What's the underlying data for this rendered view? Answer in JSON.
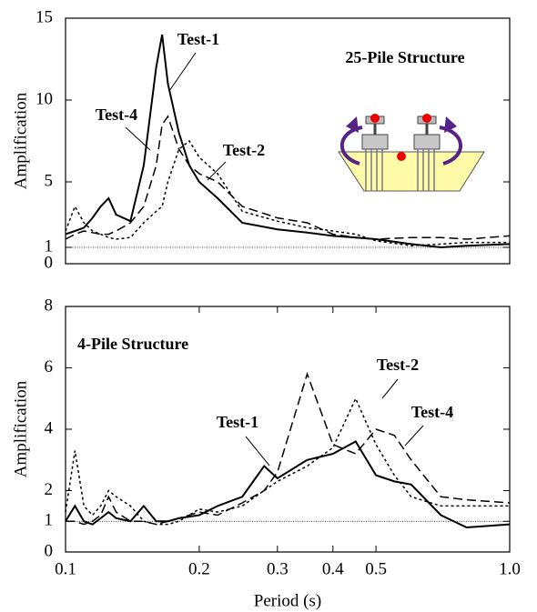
{
  "chart_data": [
    {
      "type": "line",
      "title": "25-Pile Structure",
      "ylabel": "Amplification",
      "log_x": true,
      "xlim": [
        0.1,
        1.0
      ],
      "ylim": [
        0,
        15
      ],
      "yticks": [
        0,
        1,
        5,
        10,
        15
      ],
      "reference_line": 1,
      "x": [
        0.1,
        0.105,
        0.11,
        0.115,
        0.12,
        0.125,
        0.13,
        0.14,
        0.15,
        0.16,
        0.165,
        0.17,
        0.18,
        0.19,
        0.2,
        0.22,
        0.25,
        0.3,
        0.35,
        0.4,
        0.45,
        0.5,
        0.6,
        0.7,
        0.8,
        1.0
      ],
      "series": [
        {
          "name": "Test-1",
          "color": "#000000",
          "style": "solid",
          "values": [
            1.8,
            2.0,
            2.2,
            2.8,
            3.5,
            4.0,
            3.0,
            2.6,
            6,
            12,
            14,
            11,
            8,
            6,
            5,
            4,
            2.5,
            2.1,
            1.9,
            1.7,
            1.6,
            1.5,
            1.2,
            1.0,
            1.1,
            1.2
          ]
        },
        {
          "name": "Test-4",
          "color": "#000000",
          "style": "dashed",
          "values": [
            1.5,
            1.8,
            2.0,
            1.9,
            1.8,
            1.8,
            2.0,
            2.5,
            3.5,
            6,
            8.5,
            9,
            7,
            6,
            5.5,
            5,
            3.5,
            2.8,
            2.5,
            1.8,
            1.6,
            1.5,
            1.6,
            1.6,
            1.5,
            1.7
          ]
        },
        {
          "name": "Test-2",
          "color": "#000000",
          "style": "dotted",
          "values": [
            2,
            3.5,
            2.5,
            2,
            1.8,
            1.6,
            1.5,
            1.6,
            2.5,
            3.2,
            3.5,
            5,
            7,
            7.5,
            6.5,
            5.5,
            3.2,
            2.6,
            2.2,
            2.0,
            1.8,
            1.4,
            1.1,
            1.2,
            1.3,
            1.3
          ]
        }
      ]
    },
    {
      "type": "line",
      "title": "4-Pile Structure",
      "ylabel": "Amplification",
      "xlabel": "Period (s)",
      "log_x": true,
      "xlim": [
        0.1,
        1.0
      ],
      "xticks": [
        0.1,
        0.2,
        0.3,
        0.4,
        0.5,
        {
          "value": 1,
          "label": "1.0"
        }
      ],
      "ylim": [
        0,
        8
      ],
      "yticks": [
        0,
        1,
        2,
        4,
        6,
        8
      ],
      "reference_line": 1,
      "x": [
        0.1,
        0.105,
        0.11,
        0.115,
        0.12,
        0.125,
        0.13,
        0.14,
        0.15,
        0.16,
        0.17,
        0.18,
        0.2,
        0.22,
        0.25,
        0.28,
        0.3,
        0.35,
        0.4,
        0.45,
        0.5,
        0.55,
        0.6,
        0.7,
        0.8,
        1.0
      ],
      "series": [
        {
          "name": "Test-1",
          "color": "#000000",
          "style": "solid",
          "values": [
            1.0,
            1.5,
            1.0,
            0.9,
            1.1,
            1.3,
            1.1,
            1.0,
            1.5,
            1.0,
            1.0,
            1.1,
            1.2,
            1.5,
            1.8,
            2.8,
            2.4,
            3.0,
            3.2,
            3.6,
            2.5,
            2.3,
            2.2,
            1.2,
            0.8,
            0.9
          ]
        },
        {
          "name": "Test-2",
          "color": "#000000",
          "style": "dotted",
          "values": [
            1.3,
            3.3,
            1.5,
            1.2,
            1.5,
            2.0,
            1.8,
            1.5,
            1.0,
            0.9,
            0.9,
            1.0,
            1.4,
            1.3,
            1.5,
            2.0,
            2.3,
            2.8,
            3.4,
            5.0,
            3.5,
            2.5,
            1.8,
            1.5,
            1.5,
            1.5
          ]
        },
        {
          "name": "Test-4",
          "color": "#000000",
          "style": "dashed",
          "values": [
            1.0,
            1.0,
            0.9,
            1.0,
            1.2,
            1.8,
            1.3,
            1.0,
            1.0,
            0.9,
            1.0,
            1.1,
            1.3,
            1.2,
            1.6,
            2.0,
            2.6,
            5.8,
            3.5,
            3.2,
            4.0,
            3.8,
            3.0,
            1.8,
            1.7,
            1.6
          ]
        }
      ]
    }
  ]
}
